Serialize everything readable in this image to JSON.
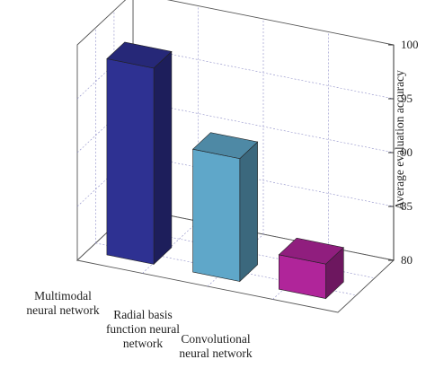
{
  "chart_data": {
    "type": "bar",
    "title": "",
    "xlabel": "",
    "ylabel": "Average evaluation accuracy",
    "ylim": [
      80,
      100
    ],
    "yticks": [
      80,
      85,
      90,
      95,
      100
    ],
    "grid": true,
    "categories": [
      [
        "Multimodal",
        "neural network"
      ],
      [
        "Radial basis",
        "function neural",
        "network"
      ],
      [
        "Convolutional",
        "neural network"
      ]
    ],
    "values": [
      98.2,
      91.4,
      83.2
    ],
    "colors": [
      "#2E3192",
      "#5FA7C9",
      "#B0259A"
    ]
  }
}
